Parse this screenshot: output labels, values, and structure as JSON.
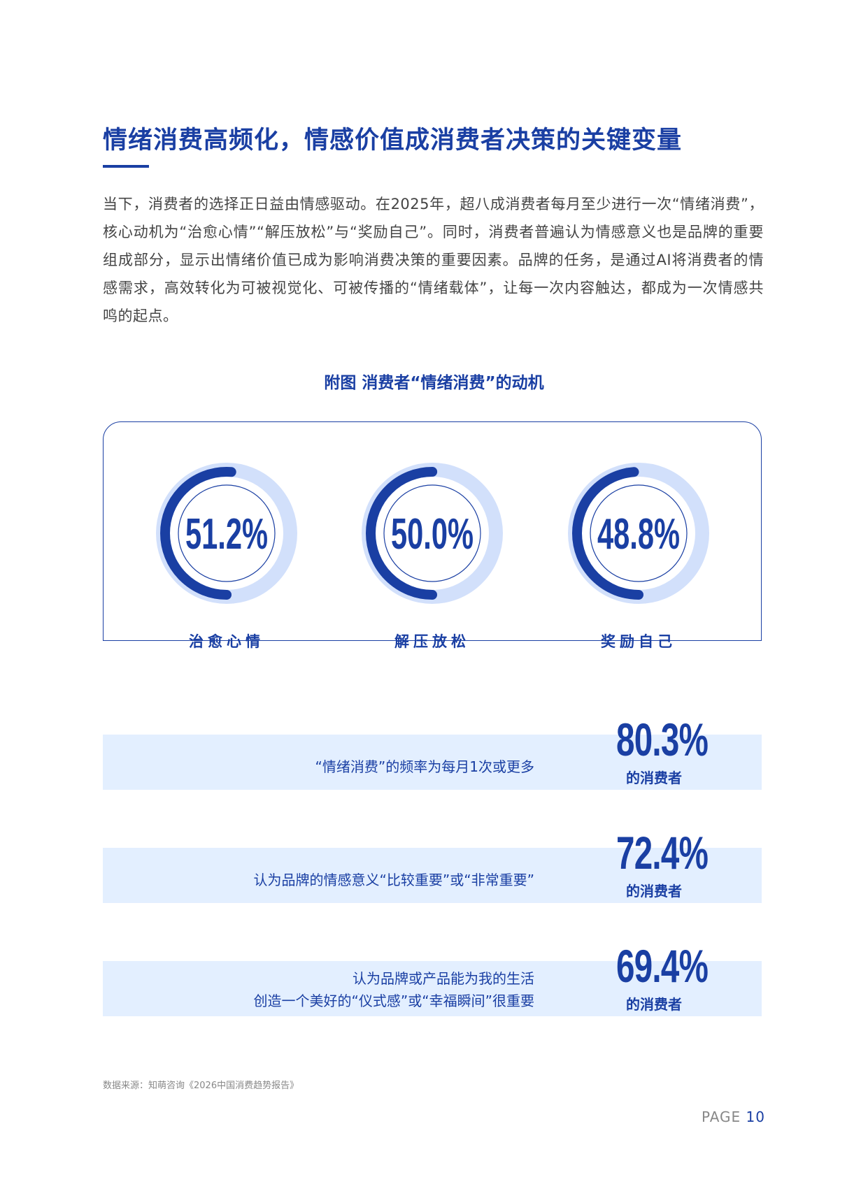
{
  "title": "情绪消费高频化，情感价值成消费者决策的关键变量",
  "intro": "当下，消费者的选择正日益由情感驱动。在2025年，超八成消费者每月至少进行一次“情绪消费”，核心动机为“治愈心情”“解压放松”与“奖励自己”。同时，消费者普遍认为情感意义也是品牌的重要组成部分，显示出情绪价值已成为影响消费决策的重要因素。品牌的任务，是通过AI将消费者的情感需求，高效转化为可被视觉化、可被传播的“情绪载体”，让每一次内容触达，都成为一次情感共鸣的起点。",
  "figure_title": "附图  消费者“情绪消费”的动机",
  "colors": {
    "primary": "#1a3fa3",
    "ring_track": "#d2e0fb",
    "row_bg": "#e3efff"
  },
  "motives": [
    {
      "label": "治愈心情",
      "value_text": "51.2%",
      "value": 51.2
    },
    {
      "label": "解压放松",
      "value_text": "50.0%",
      "value": 50.0
    },
    {
      "label": "奖励自己",
      "value_text": "48.8%",
      "value": 48.8
    }
  ],
  "stats": [
    {
      "text_lines": [
        "“情绪消费”的频率为每月1次或更多"
      ],
      "value": "80.3%",
      "unit": "的消费者"
    },
    {
      "text_lines": [
        "认为品牌的情感意义“比较重要”或“非常重要”"
      ],
      "value": "72.4%",
      "unit": "的消费者"
    },
    {
      "text_lines": [
        "认为品牌或产品能为我的生活",
        "创造一个美好的“仪式感”或“幸福瞬间”很重要"
      ],
      "value": "69.4%",
      "unit": "的消费者"
    }
  ],
  "source": "数据来源：知萌咨询《2026中国消费趋势报告》",
  "page": {
    "prefix": "PAGE",
    "number": "10"
  }
}
